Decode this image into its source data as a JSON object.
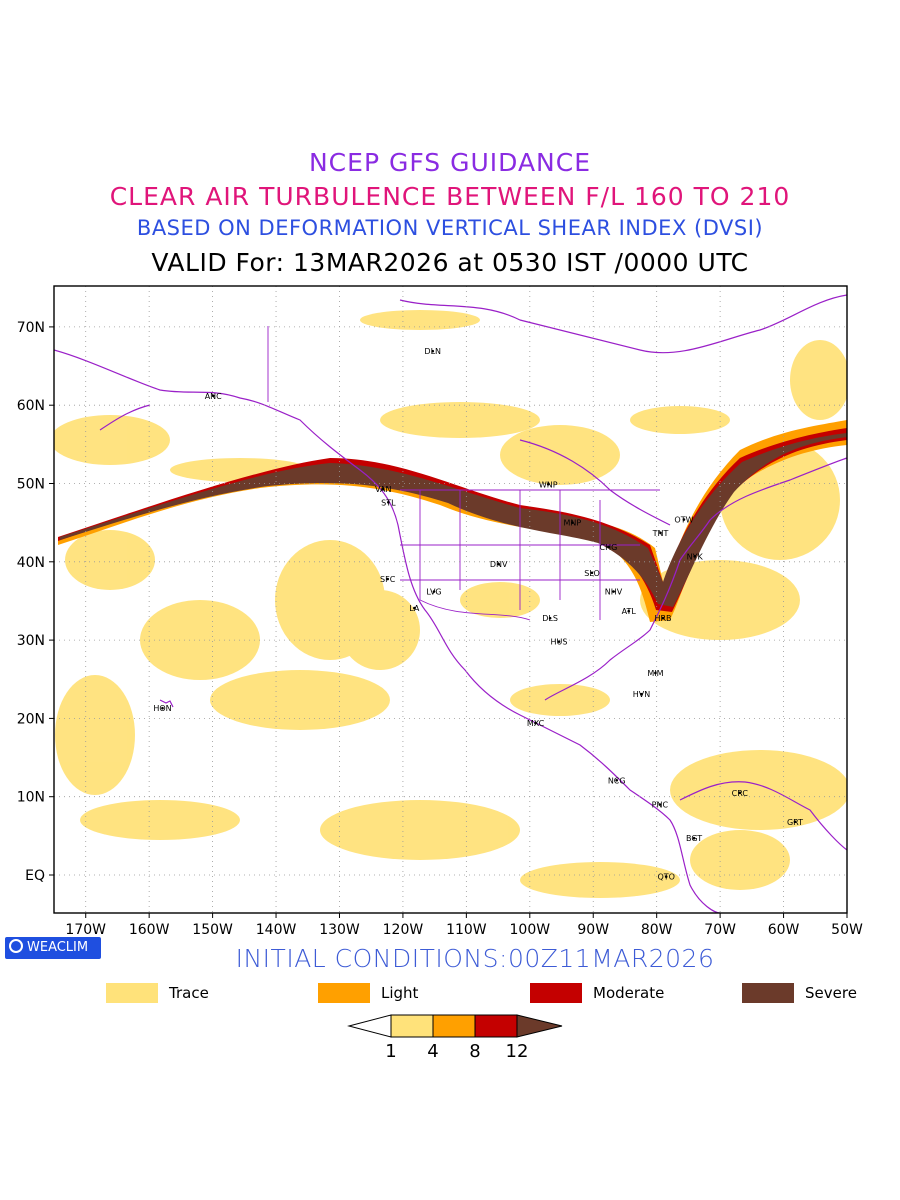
{
  "header": {
    "line1": "NCEP GFS GUIDANCE",
    "line2": "CLEAR AIR TURBULENCE BETWEEN F/L 160 TO 210",
    "line3": "BASED ON DEFORMATION VERTICAL SHEAR INDEX (DVSI)",
    "line4": "VALID For: 13MAR2026 at 0530 IST /0000 UTC"
  },
  "colors": {
    "line1": "#8a2be2",
    "line2": "#e0157a",
    "line3": "#2d4fe0",
    "line4": "#000000",
    "trace": "#ffe27a",
    "light": "#ffa000",
    "moderate": "#c40000",
    "severe": "#6b3a2a",
    "coast": "#9a20c8",
    "init": "#3d5bd6"
  },
  "axes": {
    "lat_labels": [
      "70N",
      "60N",
      "50N",
      "40N",
      "30N",
      "20N",
      "10N",
      "EQ"
    ],
    "lon_labels": [
      "170W",
      "160W",
      "150W",
      "140W",
      "130W",
      "120W",
      "110W",
      "100W",
      "90W",
      "80W",
      "70W",
      "60W",
      "50W"
    ]
  },
  "cities": [
    {
      "name": "DLN",
      "lon": -115.3,
      "lat": 66.9
    },
    {
      "name": "ANC",
      "lon": -149.9,
      "lat": 61.2
    },
    {
      "name": "VAN",
      "lon": -123.1,
      "lat": 49.3
    },
    {
      "name": "STL",
      "lon": -122.3,
      "lat": 47.6
    },
    {
      "name": "WNP",
      "lon": -97.1,
      "lat": 49.9
    },
    {
      "name": "MNP",
      "lon": -93.3,
      "lat": 45.0
    },
    {
      "name": "TNT",
      "lon": -79.4,
      "lat": 43.7
    },
    {
      "name": "OTW",
      "lon": -75.7,
      "lat": 45.4
    },
    {
      "name": "NYK",
      "lon": -74.0,
      "lat": 40.7
    },
    {
      "name": "CHG",
      "lon": -87.6,
      "lat": 41.9
    },
    {
      "name": "DNV",
      "lon": -104.9,
      "lat": 39.7
    },
    {
      "name": "SFC",
      "lon": -122.4,
      "lat": 37.8
    },
    {
      "name": "LVG",
      "lon": -115.1,
      "lat": 36.2
    },
    {
      "name": "LA",
      "lon": -118.2,
      "lat": 34.1
    },
    {
      "name": "SLO",
      "lon": -90.2,
      "lat": 38.6
    },
    {
      "name": "NHV",
      "lon": -86.8,
      "lat": 36.2
    },
    {
      "name": "ATL",
      "lon": -84.4,
      "lat": 33.7
    },
    {
      "name": "HRB",
      "lon": -79.0,
      "lat": 32.8
    },
    {
      "name": "DLS",
      "lon": -96.8,
      "lat": 32.8
    },
    {
      "name": "HUS",
      "lon": -95.4,
      "lat": 29.8
    },
    {
      "name": "MIM",
      "lon": -80.2,
      "lat": 25.8
    },
    {
      "name": "HVN",
      "lon": -82.4,
      "lat": 23.1
    },
    {
      "name": "HON",
      "lon": -157.9,
      "lat": 21.3
    },
    {
      "name": "MXC",
      "lon": -99.1,
      "lat": 19.4
    },
    {
      "name": "NCG",
      "lon": -86.3,
      "lat": 12.1
    },
    {
      "name": "CRC",
      "lon": -66.9,
      "lat": 10.5
    },
    {
      "name": "PNC",
      "lon": -79.5,
      "lat": 9.0
    },
    {
      "name": "GRT",
      "lon": -58.2,
      "lat": 6.8
    },
    {
      "name": "BGT",
      "lon": -74.1,
      "lat": 4.7
    },
    {
      "name": "QTO",
      "lon": -78.5,
      "lat": -0.2
    }
  ],
  "footer": {
    "badge": "WEACLIM",
    "init": "INITIAL CONDITIONS:00Z11MAR2026"
  },
  "legend": [
    {
      "label": "Trace",
      "color": "#ffe27a"
    },
    {
      "label": "Light",
      "color": "#ffa000"
    },
    {
      "label": "Moderate",
      "color": "#c40000"
    },
    {
      "label": "Severe",
      "color": "#6b3a2a"
    }
  ],
  "colorbar": {
    "ticks": [
      "1",
      "4",
      "8",
      "12"
    ]
  }
}
